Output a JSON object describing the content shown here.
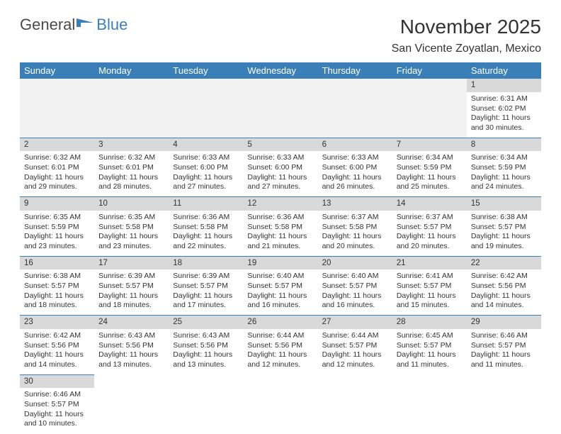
{
  "logo": {
    "text1": "General",
    "text2": "Blue",
    "fill": "#3a7fb8"
  },
  "title": "November 2025",
  "location": "San Vicente Zoyatlan, Mexico",
  "colors": {
    "header_bg": "#3a7fb8",
    "header_fg": "#ffffff",
    "daynum_bg": "#d9d9d9",
    "blank_bg": "#f2f2f2",
    "rule": "#3a7fb8"
  },
  "weekdays": [
    "Sunday",
    "Monday",
    "Tuesday",
    "Wednesday",
    "Thursday",
    "Friday",
    "Saturday"
  ],
  "weeks": [
    [
      null,
      null,
      null,
      null,
      null,
      null,
      {
        "d": "1",
        "sunrise": "6:31 AM",
        "sunset": "6:02 PM",
        "daylight": "11 hours and 30 minutes."
      }
    ],
    [
      {
        "d": "2",
        "sunrise": "6:32 AM",
        "sunset": "6:01 PM",
        "daylight": "11 hours and 29 minutes."
      },
      {
        "d": "3",
        "sunrise": "6:32 AM",
        "sunset": "6:01 PM",
        "daylight": "11 hours and 28 minutes."
      },
      {
        "d": "4",
        "sunrise": "6:33 AM",
        "sunset": "6:00 PM",
        "daylight": "11 hours and 27 minutes."
      },
      {
        "d": "5",
        "sunrise": "6:33 AM",
        "sunset": "6:00 PM",
        "daylight": "11 hours and 27 minutes."
      },
      {
        "d": "6",
        "sunrise": "6:33 AM",
        "sunset": "6:00 PM",
        "daylight": "11 hours and 26 minutes."
      },
      {
        "d": "7",
        "sunrise": "6:34 AM",
        "sunset": "5:59 PM",
        "daylight": "11 hours and 25 minutes."
      },
      {
        "d": "8",
        "sunrise": "6:34 AM",
        "sunset": "5:59 PM",
        "daylight": "11 hours and 24 minutes."
      }
    ],
    [
      {
        "d": "9",
        "sunrise": "6:35 AM",
        "sunset": "5:59 PM",
        "daylight": "11 hours and 23 minutes."
      },
      {
        "d": "10",
        "sunrise": "6:35 AM",
        "sunset": "5:58 PM",
        "daylight": "11 hours and 23 minutes."
      },
      {
        "d": "11",
        "sunrise": "6:36 AM",
        "sunset": "5:58 PM",
        "daylight": "11 hours and 22 minutes."
      },
      {
        "d": "12",
        "sunrise": "6:36 AM",
        "sunset": "5:58 PM",
        "daylight": "11 hours and 21 minutes."
      },
      {
        "d": "13",
        "sunrise": "6:37 AM",
        "sunset": "5:58 PM",
        "daylight": "11 hours and 20 minutes."
      },
      {
        "d": "14",
        "sunrise": "6:37 AM",
        "sunset": "5:57 PM",
        "daylight": "11 hours and 20 minutes."
      },
      {
        "d": "15",
        "sunrise": "6:38 AM",
        "sunset": "5:57 PM",
        "daylight": "11 hours and 19 minutes."
      }
    ],
    [
      {
        "d": "16",
        "sunrise": "6:38 AM",
        "sunset": "5:57 PM",
        "daylight": "11 hours and 18 minutes."
      },
      {
        "d": "17",
        "sunrise": "6:39 AM",
        "sunset": "5:57 PM",
        "daylight": "11 hours and 18 minutes."
      },
      {
        "d": "18",
        "sunrise": "6:39 AM",
        "sunset": "5:57 PM",
        "daylight": "11 hours and 17 minutes."
      },
      {
        "d": "19",
        "sunrise": "6:40 AM",
        "sunset": "5:57 PM",
        "daylight": "11 hours and 16 minutes."
      },
      {
        "d": "20",
        "sunrise": "6:40 AM",
        "sunset": "5:57 PM",
        "daylight": "11 hours and 16 minutes."
      },
      {
        "d": "21",
        "sunrise": "6:41 AM",
        "sunset": "5:57 PM",
        "daylight": "11 hours and 15 minutes."
      },
      {
        "d": "22",
        "sunrise": "6:42 AM",
        "sunset": "5:56 PM",
        "daylight": "11 hours and 14 minutes."
      }
    ],
    [
      {
        "d": "23",
        "sunrise": "6:42 AM",
        "sunset": "5:56 PM",
        "daylight": "11 hours and 14 minutes."
      },
      {
        "d": "24",
        "sunrise": "6:43 AM",
        "sunset": "5:56 PM",
        "daylight": "11 hours and 13 minutes."
      },
      {
        "d": "25",
        "sunrise": "6:43 AM",
        "sunset": "5:56 PM",
        "daylight": "11 hours and 13 minutes."
      },
      {
        "d": "26",
        "sunrise": "6:44 AM",
        "sunset": "5:56 PM",
        "daylight": "11 hours and 12 minutes."
      },
      {
        "d": "27",
        "sunrise": "6:44 AM",
        "sunset": "5:57 PM",
        "daylight": "11 hours and 12 minutes."
      },
      {
        "d": "28",
        "sunrise": "6:45 AM",
        "sunset": "5:57 PM",
        "daylight": "11 hours and 11 minutes."
      },
      {
        "d": "29",
        "sunrise": "6:46 AM",
        "sunset": "5:57 PM",
        "daylight": "11 hours and 11 minutes."
      }
    ],
    [
      {
        "d": "30",
        "sunrise": "6:46 AM",
        "sunset": "5:57 PM",
        "daylight": "11 hours and 10 minutes."
      },
      null,
      null,
      null,
      null,
      null,
      null
    ]
  ],
  "labels": {
    "sunrise": "Sunrise: ",
    "sunset": "Sunset: ",
    "daylight": "Daylight: "
  }
}
